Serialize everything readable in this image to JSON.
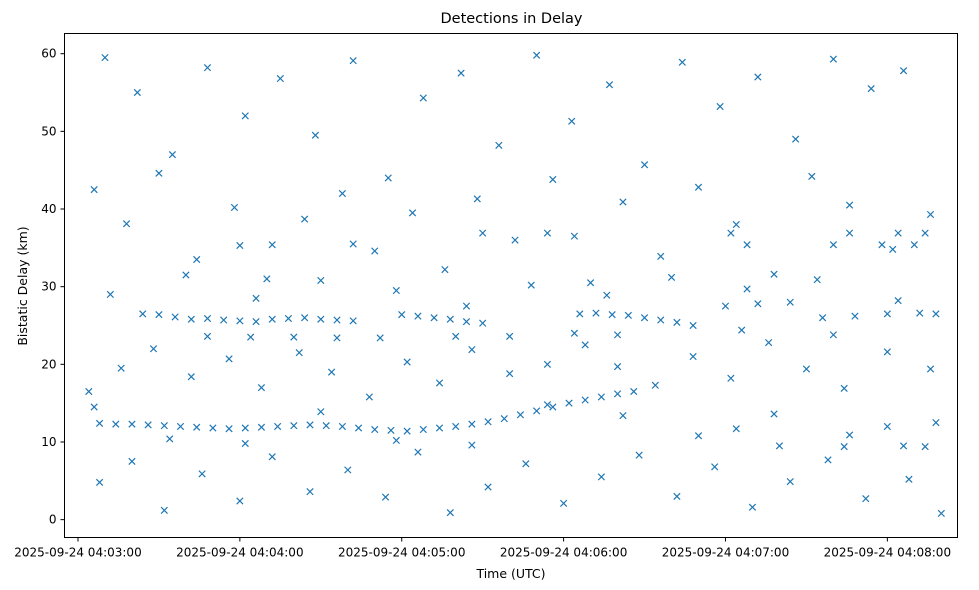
{
  "chart_data": {
    "type": "scatter",
    "title": "Detections in Delay",
    "xlabel": "Time (UTC)",
    "ylabel": "Bistatic Delay (km)",
    "marker": "x",
    "color": "#1f77b4",
    "x_ticks": [
      "2025-09-24 04:03:00",
      "2025-09-24 04:04:00",
      "2025-09-24 04:05:00",
      "2025-09-24 04:06:00",
      "2025-09-24 04:07:00",
      "2025-09-24 04:08:00"
    ],
    "y_ticks": [
      0,
      10,
      20,
      30,
      40,
      50,
      60
    ],
    "xlim": [
      "2025-09-24 04:02:55",
      "2025-09-24 04:08:26"
    ],
    "ylim": [
      -2.3,
      62.6
    ],
    "grid": false,
    "series": [
      {
        "points": [
          [
            "2025-09-24 04:03:08",
            12.4
          ],
          [
            "2025-09-24 04:03:14",
            12.3
          ],
          [
            "2025-09-24 04:03:20",
            12.3
          ],
          [
            "2025-09-24 04:03:26",
            12.2
          ],
          [
            "2025-09-24 04:03:32",
            12.1
          ],
          [
            "2025-09-24 04:03:38",
            12.0
          ],
          [
            "2025-09-24 04:03:44",
            11.9
          ],
          [
            "2025-09-24 04:03:50",
            11.8
          ],
          [
            "2025-09-24 04:03:56",
            11.7
          ],
          [
            "2025-09-24 04:04:02",
            11.8
          ],
          [
            "2025-09-24 04:04:08",
            11.9
          ],
          [
            "2025-09-24 04:04:14",
            12.0
          ],
          [
            "2025-09-24 04:04:20",
            12.1
          ],
          [
            "2025-09-24 04:04:26",
            12.2
          ],
          [
            "2025-09-24 04:04:32",
            12.1
          ],
          [
            "2025-09-24 04:04:38",
            12.0
          ],
          [
            "2025-09-24 04:04:44",
            11.8
          ],
          [
            "2025-09-24 04:04:50",
            11.6
          ],
          [
            "2025-09-24 04:04:56",
            11.5
          ],
          [
            "2025-09-24 04:05:02",
            11.4
          ],
          [
            "2025-09-24 04:05:08",
            11.6
          ],
          [
            "2025-09-24 04:05:14",
            11.8
          ],
          [
            "2025-09-24 04:05:20",
            12.0
          ],
          [
            "2025-09-24 04:05:26",
            12.3
          ],
          [
            "2025-09-24 04:05:32",
            12.6
          ],
          [
            "2025-09-24 04:05:38",
            13.0
          ],
          [
            "2025-09-24 04:05:44",
            13.5
          ],
          [
            "2025-09-24 04:05:50",
            14.0
          ],
          [
            "2025-09-24 04:05:56",
            14.5
          ],
          [
            "2025-09-24 04:06:02",
            15.0
          ],
          [
            "2025-09-24 04:06:08",
            15.4
          ],
          [
            "2025-09-24 04:06:14",
            15.8
          ],
          [
            "2025-09-24 04:06:20",
            16.2
          ],
          [
            "2025-09-24 04:06:26",
            16.5
          ],
          [
            "2025-09-24 04:03:24",
            26.5
          ],
          [
            "2025-09-24 04:03:30",
            26.4
          ],
          [
            "2025-09-24 04:03:36",
            26.1
          ],
          [
            "2025-09-24 04:03:42",
            25.8
          ],
          [
            "2025-09-24 04:03:48",
            25.9
          ],
          [
            "2025-09-24 04:03:54",
            25.7
          ],
          [
            "2025-09-24 04:04:00",
            25.6
          ],
          [
            "2025-09-24 04:04:06",
            25.5
          ],
          [
            "2025-09-24 04:04:12",
            25.8
          ],
          [
            "2025-09-24 04:04:18",
            25.9
          ],
          [
            "2025-09-24 04:04:24",
            26.0
          ],
          [
            "2025-09-24 04:04:30",
            25.8
          ],
          [
            "2025-09-24 04:04:36",
            25.7
          ],
          [
            "2025-09-24 04:04:42",
            25.6
          ],
          [
            "2025-09-24 04:05:00",
            26.4
          ],
          [
            "2025-09-24 04:05:06",
            26.2
          ],
          [
            "2025-09-24 04:05:12",
            26.0
          ],
          [
            "2025-09-24 04:05:18",
            25.8
          ],
          [
            "2025-09-24 04:05:24",
            25.5
          ],
          [
            "2025-09-24 04:05:30",
            25.3
          ],
          [
            "2025-09-24 04:06:06",
            26.5
          ],
          [
            "2025-09-24 04:06:12",
            26.6
          ],
          [
            "2025-09-24 04:06:18",
            26.4
          ],
          [
            "2025-09-24 04:06:24",
            26.3
          ],
          [
            "2025-09-24 04:06:30",
            26.0
          ],
          [
            "2025-09-24 04:06:36",
            25.7
          ],
          [
            "2025-09-24 04:06:42",
            25.4
          ],
          [
            "2025-09-24 04:06:48",
            25.0
          ],
          [
            "2025-09-24 04:07:00",
            27.5
          ],
          [
            "2025-09-24 04:07:12",
            27.8
          ],
          [
            "2025-09-24 04:07:24",
            28.0
          ],
          [
            "2025-09-24 04:07:36",
            26.0
          ],
          [
            "2025-09-24 04:07:48",
            26.2
          ],
          [
            "2025-09-24 04:08:00",
            26.5
          ],
          [
            "2025-09-24 04:08:12",
            26.6
          ],
          [
            "2025-09-24 04:08:18",
            26.5
          ],
          [
            "2025-09-24 04:03:48",
            23.6
          ],
          [
            "2025-09-24 04:04:04",
            23.5
          ],
          [
            "2025-09-24 04:04:20",
            23.5
          ],
          [
            "2025-09-24 04:04:36",
            23.4
          ],
          [
            "2025-09-24 04:04:52",
            23.4
          ],
          [
            "2025-09-24 04:05:20",
            23.6
          ],
          [
            "2025-09-24 04:05:40",
            23.6
          ],
          [
            "2025-09-24 04:06:04",
            24.0
          ],
          [
            "2025-09-24 04:06:20",
            23.8
          ],
          [
            "2025-09-24 04:07:06",
            24.4
          ],
          [
            "2025-09-24 04:07:40",
            23.8
          ],
          [
            "2025-09-24 04:04:00",
            35.3
          ],
          [
            "2025-09-24 04:04:12",
            35.4
          ],
          [
            "2025-09-24 04:04:42",
            35.5
          ],
          [
            "2025-09-24 04:05:30",
            36.9
          ],
          [
            "2025-09-24 04:05:54",
            36.9
          ],
          [
            "2025-09-24 04:06:04",
            36.5
          ],
          [
            "2025-09-24 04:07:02",
            36.9
          ],
          [
            "2025-09-24 04:07:08",
            35.4
          ],
          [
            "2025-09-24 04:07:40",
            35.4
          ],
          [
            "2025-09-24 04:07:46",
            36.9
          ],
          [
            "2025-09-24 04:07:58",
            35.4
          ],
          [
            "2025-09-24 04:08:04",
            36.9
          ],
          [
            "2025-09-24 04:08:10",
            35.4
          ],
          [
            "2025-09-24 04:08:14",
            36.9
          ],
          [
            "2025-09-24 04:07:04",
            11.7
          ],
          [
            "2025-09-24 04:07:20",
            9.5
          ],
          [
            "2025-09-24 04:07:44",
            9.4
          ],
          [
            "2025-09-24 04:08:00",
            12.0
          ],
          [
            "2025-09-24 04:08:06",
            9.5
          ],
          [
            "2025-09-24 04:08:14",
            9.4
          ],
          [
            "2025-09-24 04:08:18",
            12.5
          ],
          [
            "2025-09-24 04:03:10",
            59.5
          ],
          [
            "2025-09-24 04:03:22",
            55.0
          ],
          [
            "2025-09-24 04:03:35",
            47.0
          ],
          [
            "2025-09-24 04:03:48",
            58.2
          ],
          [
            "2025-09-24 04:04:02",
            52.0
          ],
          [
            "2025-09-24 04:04:15",
            56.8
          ],
          [
            "2025-09-24 04:04:28",
            49.5
          ],
          [
            "2025-09-24 04:04:42",
            59.1
          ],
          [
            "2025-09-24 04:04:55",
            44.0
          ],
          [
            "2025-09-24 04:05:08",
            54.3
          ],
          [
            "2025-09-24 04:05:22",
            57.5
          ],
          [
            "2025-09-24 04:05:36",
            48.2
          ],
          [
            "2025-09-24 04:05:50",
            59.8
          ],
          [
            "2025-09-24 04:06:03",
            51.3
          ],
          [
            "2025-09-24 04:06:17",
            56.0
          ],
          [
            "2025-09-24 04:06:30",
            45.7
          ],
          [
            "2025-09-24 04:06:44",
            58.9
          ],
          [
            "2025-09-24 04:06:58",
            53.2
          ],
          [
            "2025-09-24 04:07:12",
            57.0
          ],
          [
            "2025-09-24 04:07:26",
            49.0
          ],
          [
            "2025-09-24 04:07:40",
            59.3
          ],
          [
            "2025-09-24 04:07:54",
            55.5
          ],
          [
            "2025-09-24 04:08:06",
            57.8
          ],
          [
            "2025-09-24 04:03:06",
            42.5
          ],
          [
            "2025-09-24 04:03:18",
            38.1
          ],
          [
            "2025-09-24 04:03:30",
            44.6
          ],
          [
            "2025-09-24 04:03:44",
            33.5
          ],
          [
            "2025-09-24 04:03:58",
            40.2
          ],
          [
            "2025-09-24 04:04:10",
            31.0
          ],
          [
            "2025-09-24 04:04:24",
            38.7
          ],
          [
            "2025-09-24 04:04:38",
            42.0
          ],
          [
            "2025-09-24 04:04:50",
            34.6
          ],
          [
            "2025-09-24 04:05:04",
            39.5
          ],
          [
            "2025-09-24 04:05:16",
            32.2
          ],
          [
            "2025-09-24 04:05:28",
            41.3
          ],
          [
            "2025-09-24 04:05:42",
            36.0
          ],
          [
            "2025-09-24 04:05:56",
            43.8
          ],
          [
            "2025-09-24 04:06:10",
            30.5
          ],
          [
            "2025-09-24 04:06:22",
            40.9
          ],
          [
            "2025-09-24 04:06:36",
            33.9
          ],
          [
            "2025-09-24 04:06:50",
            42.8
          ],
          [
            "2025-09-24 04:07:04",
            38.0
          ],
          [
            "2025-09-24 04:07:18",
            31.6
          ],
          [
            "2025-09-24 04:07:32",
            44.2
          ],
          [
            "2025-09-24 04:07:46",
            40.5
          ],
          [
            "2025-09-24 04:08:02",
            34.8
          ],
          [
            "2025-09-24 04:08:16",
            39.3
          ],
          [
            "2025-09-24 04:03:04",
            16.5
          ],
          [
            "2025-09-24 04:03:16",
            19.5
          ],
          [
            "2025-09-24 04:03:28",
            22.0
          ],
          [
            "2025-09-24 04:03:42",
            18.4
          ],
          [
            "2025-09-24 04:03:56",
            20.7
          ],
          [
            "2025-09-24 04:04:08",
            17.0
          ],
          [
            "2025-09-24 04:04:22",
            21.5
          ],
          [
            "2025-09-24 04:04:34",
            19.0
          ],
          [
            "2025-09-24 04:04:48",
            15.8
          ],
          [
            "2025-09-24 04:05:02",
            20.3
          ],
          [
            "2025-09-24 04:05:14",
            17.6
          ],
          [
            "2025-09-24 04:05:26",
            21.9
          ],
          [
            "2025-09-24 04:05:40",
            18.8
          ],
          [
            "2025-09-24 04:05:54",
            20.0
          ],
          [
            "2025-09-24 04:06:08",
            22.5
          ],
          [
            "2025-09-24 04:06:20",
            19.7
          ],
          [
            "2025-09-24 04:06:34",
            17.3
          ],
          [
            "2025-09-24 04:06:48",
            21.0
          ],
          [
            "2025-09-24 04:07:02",
            18.2
          ],
          [
            "2025-09-24 04:07:16",
            22.8
          ],
          [
            "2025-09-24 04:07:30",
            19.4
          ],
          [
            "2025-09-24 04:07:44",
            16.9
          ],
          [
            "2025-09-24 04:08:00",
            21.6
          ],
          [
            "2025-09-24 04:08:16",
            19.4
          ],
          [
            "2025-09-24 04:03:08",
            4.8
          ],
          [
            "2025-09-24 04:03:20",
            7.5
          ],
          [
            "2025-09-24 04:03:32",
            1.2
          ],
          [
            "2025-09-24 04:03:46",
            5.9
          ],
          [
            "2025-09-24 04:04:00",
            2.4
          ],
          [
            "2025-09-24 04:04:12",
            8.1
          ],
          [
            "2025-09-24 04:04:26",
            3.6
          ],
          [
            "2025-09-24 04:04:40",
            6.4
          ],
          [
            "2025-09-24 04:04:54",
            2.9
          ],
          [
            "2025-09-24 04:05:06",
            8.7
          ],
          [
            "2025-09-24 04:05:18",
            0.9
          ],
          [
            "2025-09-24 04:05:32",
            4.2
          ],
          [
            "2025-09-24 04:05:46",
            7.2
          ],
          [
            "2025-09-24 04:06:00",
            2.1
          ],
          [
            "2025-09-24 04:06:14",
            5.5
          ],
          [
            "2025-09-24 04:06:28",
            8.3
          ],
          [
            "2025-09-24 04:06:42",
            3.0
          ],
          [
            "2025-09-24 04:06:56",
            6.8
          ],
          [
            "2025-09-24 04:07:10",
            1.6
          ],
          [
            "2025-09-24 04:07:24",
            4.9
          ],
          [
            "2025-09-24 04:07:38",
            7.7
          ],
          [
            "2025-09-24 04:07:52",
            2.7
          ],
          [
            "2025-09-24 04:08:08",
            5.2
          ],
          [
            "2025-09-24 04:08:20",
            0.8
          ],
          [
            "2025-09-24 04:03:12",
            29.0
          ],
          [
            "2025-09-24 04:03:40",
            31.5
          ],
          [
            "2025-09-24 04:04:06",
            28.5
          ],
          [
            "2025-09-24 04:04:30",
            30.8
          ],
          [
            "2025-09-24 04:04:58",
            29.5
          ],
          [
            "2025-09-24 04:05:24",
            27.5
          ],
          [
            "2025-09-24 04:05:48",
            30.2
          ],
          [
            "2025-09-24 04:06:16",
            28.9
          ],
          [
            "2025-09-24 04:06:40",
            31.2
          ],
          [
            "2025-09-24 04:07:08",
            29.7
          ],
          [
            "2025-09-24 04:07:34",
            30.9
          ],
          [
            "2025-09-24 04:08:04",
            28.2
          ],
          [
            "2025-09-24 04:03:06",
            14.5
          ],
          [
            "2025-09-24 04:03:34",
            10.4
          ],
          [
            "2025-09-24 04:04:02",
            9.8
          ],
          [
            "2025-09-24 04:04:30",
            13.9
          ],
          [
            "2025-09-24 04:04:58",
            10.2
          ],
          [
            "2025-09-24 04:05:26",
            9.6
          ],
          [
            "2025-09-24 04:05:54",
            14.8
          ],
          [
            "2025-09-24 04:06:22",
            13.4
          ],
          [
            "2025-09-24 04:06:50",
            10.8
          ],
          [
            "2025-09-24 04:07:18",
            13.6
          ],
          [
            "2025-09-24 04:07:46",
            10.9
          ]
        ]
      }
    ]
  }
}
